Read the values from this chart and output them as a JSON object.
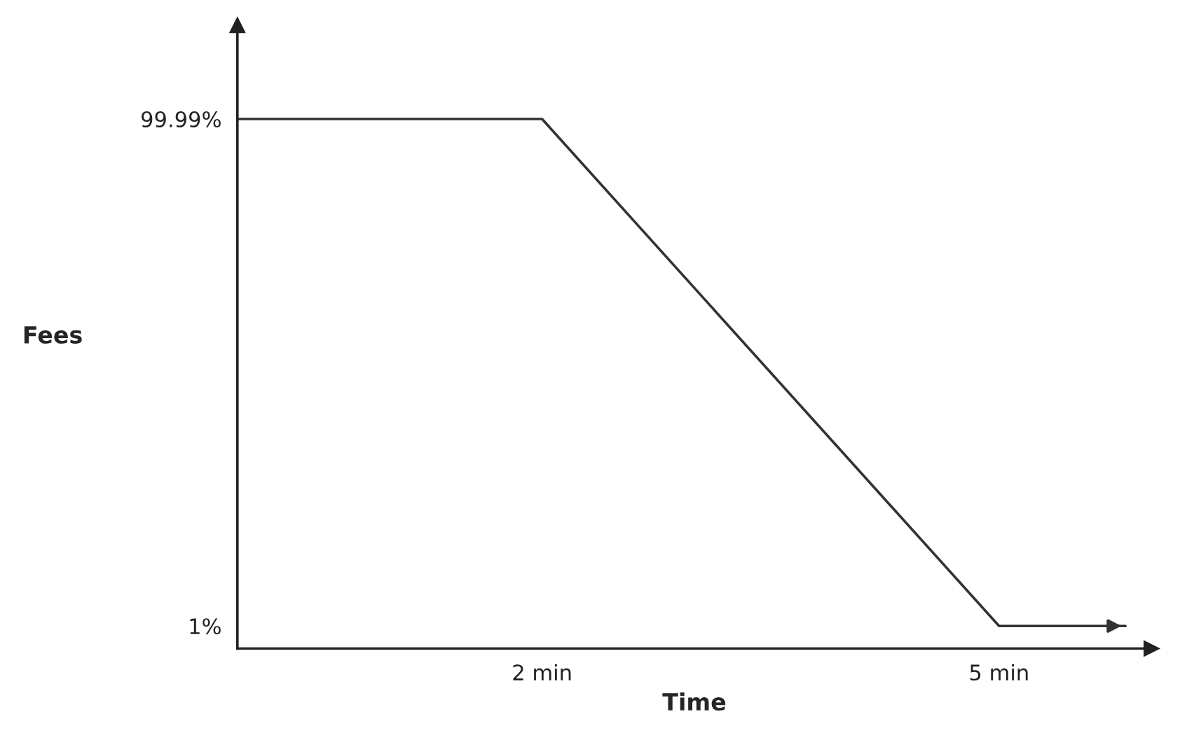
{
  "chart_data": {
    "type": "line",
    "xlabel": "Time",
    "ylabel": "Fees",
    "x": [
      0,
      2,
      5,
      5.83
    ],
    "series": [
      {
        "color": "#333333",
        "values": [
          99.99,
          99.99,
          1,
          1
        ]
      }
    ],
    "xlim": [
      0,
      6
    ],
    "ylim": [
      -3.4,
      118.3
    ],
    "xticks": [
      {
        "value": 2,
        "label": "2 min"
      },
      {
        "value": 5,
        "label": "5 min"
      }
    ],
    "yticks": [
      {
        "value": 99.99,
        "label": "99.99%"
      },
      {
        "value": 1,
        "label": "1%"
      }
    ],
    "grid": false,
    "legend": false,
    "marker": "none",
    "line_style": "solid"
  }
}
